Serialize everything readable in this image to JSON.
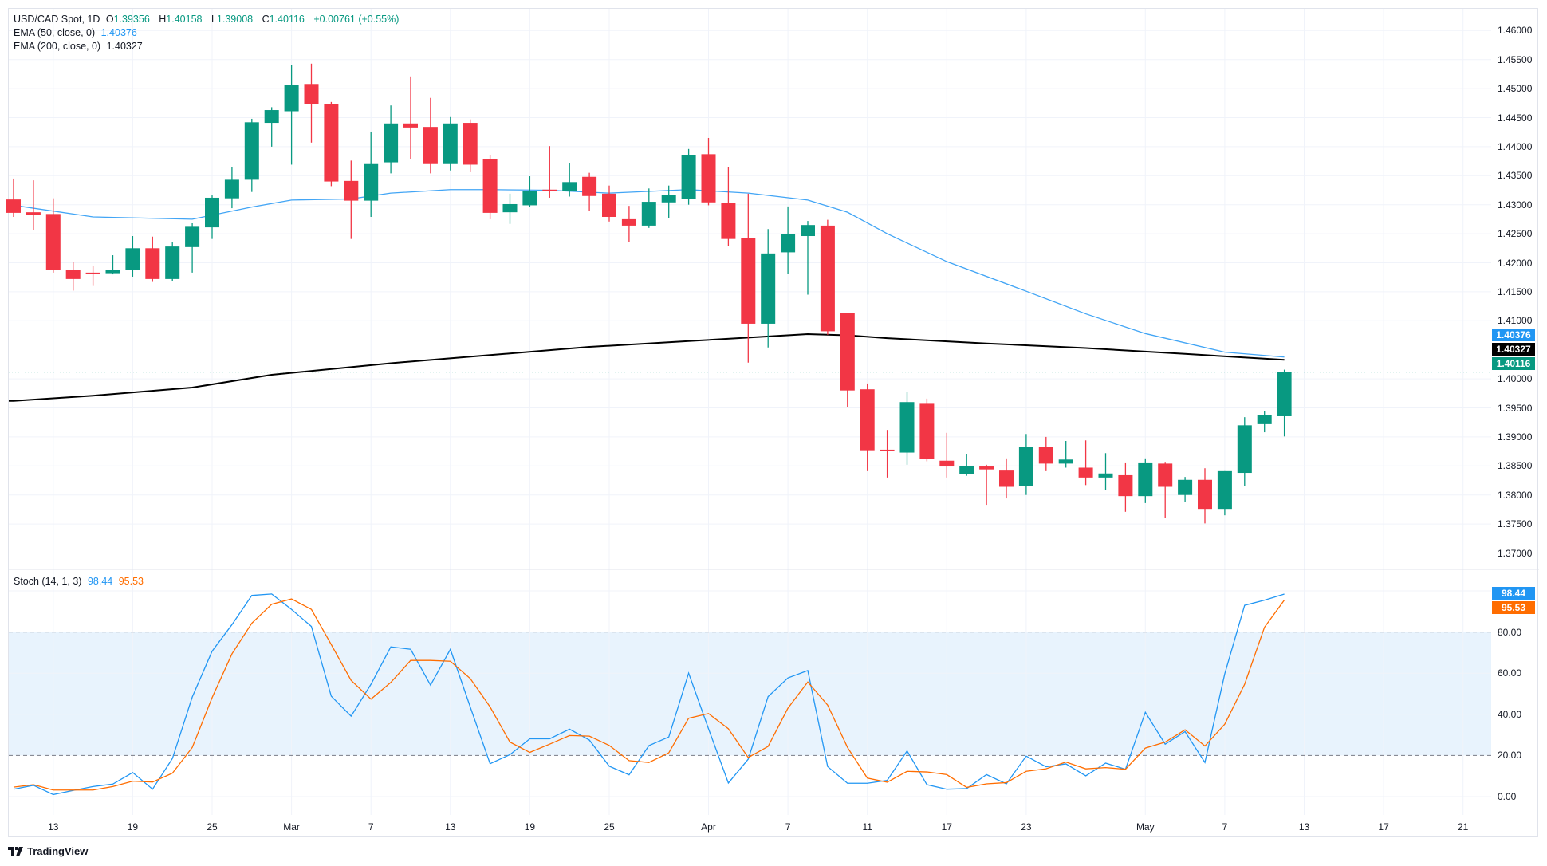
{
  "header": {
    "symbol": "USD/CAD Spot, 1D",
    "o_label": "O",
    "o": "1.39356",
    "h_label": "H",
    "h": "1.40158",
    "l_label": "L",
    "l": "1.39008",
    "c_label": "C",
    "c": "1.40116",
    "change": "+0.00761 (+0.55%)",
    "ema50_label": "EMA (50, close, 0)",
    "ema50_value": "1.40376",
    "ema200_label": "EMA (200, close, 0)",
    "ema200_value": "1.40327"
  },
  "stoch_legend": {
    "label": "Stoch (14, 1, 3)",
    "k_value": "98.44",
    "d_value": "95.53"
  },
  "price_tags": {
    "ema50": "1.40376",
    "ema200": "1.40327",
    "last": "1.40116"
  },
  "stoch_tags": {
    "k": "98.44",
    "d": "95.53"
  },
  "logo_text": "TradingView",
  "colors": {
    "up": "#089981",
    "down": "#f23645",
    "ema50": "#42a5f5",
    "ema200": "#000000",
    "stoch_k": "#2196f3",
    "stoch_d": "#ff6d00",
    "band": "#e8f3fd"
  },
  "chart_data": [
    {
      "type": "candlestick",
      "title": "USD/CAD Spot, 1D",
      "ylim": [
        1.367,
        1.4625
      ],
      "y_ticks": [
        "1.46000",
        "1.45500",
        "1.45000",
        "1.44500",
        "1.44000",
        "1.43500",
        "1.43000",
        "1.42500",
        "1.42000",
        "1.41500",
        "1.41000",
        "1.40000",
        "1.39500",
        "1.39000",
        "1.38500",
        "1.38000",
        "1.37500",
        "1.37000"
      ],
      "grid": true,
      "candles": [
        [
          "Feb 11",
          1.4309,
          1.4345,
          1.4279,
          1.4286
        ],
        [
          "Feb 12",
          1.4287,
          1.4342,
          1.4256,
          1.4283
        ],
        [
          "Feb 13",
          1.4284,
          1.4311,
          1.4183,
          1.4187
        ],
        [
          "Feb 14",
          1.4188,
          1.4202,
          1.4152,
          1.4172
        ],
        [
          "Feb 17",
          1.4183,
          1.4194,
          1.416,
          1.4182
        ],
        [
          "Feb 18",
          1.4182,
          1.4213,
          1.418,
          1.4188
        ],
        [
          "Feb 19",
          1.4187,
          1.4246,
          1.4176,
          1.4225
        ],
        [
          "Feb 20",
          1.4225,
          1.4245,
          1.4167,
          1.4172
        ],
        [
          "Feb 21",
          1.4172,
          1.4235,
          1.4169,
          1.4228
        ],
        [
          "Feb 24",
          1.4227,
          1.4268,
          1.4183,
          1.4262
        ],
        [
          "Feb 25",
          1.4261,
          1.4316,
          1.4241,
          1.4312
        ],
        [
          "Feb 26",
          1.4311,
          1.4365,
          1.4294,
          1.4343
        ],
        [
          "Feb 27",
          1.4343,
          1.4448,
          1.4322,
          1.4442
        ],
        [
          "Feb 28",
          1.4441,
          1.4468,
          1.44,
          1.4463
        ],
        [
          "Mar 3",
          1.4461,
          1.4541,
          1.4369,
          1.4507
        ],
        [
          "Mar 4",
          1.4508,
          1.4543,
          1.4407,
          1.4473
        ],
        [
          "Mar 5",
          1.4473,
          1.4477,
          1.4332,
          1.434
        ],
        [
          "Mar 6",
          1.4341,
          1.4376,
          1.4241,
          1.4307
        ],
        [
          "Mar 7",
          1.4307,
          1.4426,
          1.4279,
          1.437
        ],
        [
          "Mar 10",
          1.4373,
          1.4471,
          1.4354,
          1.444
        ],
        [
          "Mar 11",
          1.444,
          1.4521,
          1.4378,
          1.4433
        ],
        [
          "Mar 12",
          1.4434,
          1.4484,
          1.4354,
          1.437
        ],
        [
          "Mar 13",
          1.437,
          1.4451,
          1.4359,
          1.444
        ],
        [
          "Mar 14",
          1.4441,
          1.4447,
          1.4356,
          1.4369
        ],
        [
          "Mar 17",
          1.4379,
          1.4385,
          1.4275,
          1.4286
        ],
        [
          "Mar 18",
          1.4287,
          1.4319,
          1.4267,
          1.4301
        ],
        [
          "Mar 19",
          1.4299,
          1.4349,
          1.4296,
          1.4324
        ],
        [
          "Mar 20",
          1.4326,
          1.4401,
          1.4312,
          1.4325
        ],
        [
          "Mar 21",
          1.4323,
          1.4372,
          1.4314,
          1.4339
        ],
        [
          "Mar 24",
          1.4348,
          1.4355,
          1.429,
          1.4315
        ],
        [
          "Mar 25",
          1.4319,
          1.4333,
          1.4271,
          1.4279
        ],
        [
          "Mar 26",
          1.4275,
          1.4298,
          1.4236,
          1.4264
        ],
        [
          "Mar 27",
          1.4264,
          1.4328,
          1.426,
          1.4305
        ],
        [
          "Mar 28",
          1.4304,
          1.4333,
          1.4277,
          1.4317
        ],
        [
          "Mar 31",
          1.431,
          1.4396,
          1.43,
          1.4385
        ],
        [
          "Apr 1",
          1.4387,
          1.4415,
          1.4299,
          1.4304
        ],
        [
          "Apr 2",
          1.4303,
          1.4365,
          1.4229,
          1.4241
        ],
        [
          "Apr 3",
          1.4242,
          1.4319,
          1.4028,
          1.4095
        ],
        [
          "Apr 4",
          1.4095,
          1.4258,
          1.4054,
          1.4216
        ],
        [
          "Apr 7",
          1.4218,
          1.4297,
          1.4181,
          1.4249
        ],
        [
          "Apr 8",
          1.4246,
          1.4272,
          1.4145,
          1.4265
        ],
        [
          "Apr 9",
          1.4264,
          1.4274,
          1.4076,
          1.4082
        ],
        [
          "Apr 10",
          1.4114,
          1.4114,
          1.3952,
          1.398
        ],
        [
          "Apr 11",
          1.3982,
          1.3992,
          1.3841,
          1.3877
        ],
        [
          "Apr 14",
          1.3878,
          1.3912,
          1.383,
          1.3877
        ],
        [
          "Apr 15",
          1.3873,
          1.3978,
          1.3852,
          1.396
        ],
        [
          "Apr 16",
          1.3957,
          1.3966,
          1.3858,
          1.3862
        ],
        [
          "Apr 17",
          1.3859,
          1.3907,
          1.383,
          1.3849
        ],
        [
          "Apr 18",
          1.3836,
          1.3871,
          1.3833,
          1.385
        ],
        [
          "Apr 21",
          1.3849,
          1.3852,
          1.3783,
          1.3844
        ],
        [
          "Apr 22",
          1.3842,
          1.3863,
          1.3794,
          1.3814
        ],
        [
          "Apr 23",
          1.3815,
          1.3905,
          1.38,
          1.3883
        ],
        [
          "Apr 24",
          1.3882,
          1.39,
          1.3841,
          1.3854
        ],
        [
          "Apr 25",
          1.3854,
          1.3893,
          1.3847,
          1.3861
        ],
        [
          "Apr 28",
          1.3847,
          1.3894,
          1.3817,
          1.383
        ],
        [
          "Apr 29",
          1.383,
          1.3872,
          1.3809,
          1.3837
        ],
        [
          "Apr 30",
          1.3834,
          1.3856,
          1.3771,
          1.3798
        ],
        [
          "May 1",
          1.3798,
          1.3863,
          1.3786,
          1.3856
        ],
        [
          "May 2",
          1.3854,
          1.3857,
          1.3761,
          1.3814
        ],
        [
          "May 5",
          1.38,
          1.3831,
          1.3788,
          1.3826
        ],
        [
          "May 6",
          1.3826,
          1.3846,
          1.3751,
          1.3776
        ],
        [
          "May 7",
          1.3776,
          1.3841,
          1.3765,
          1.3841
        ],
        [
          "May 8",
          1.3838,
          1.3934,
          1.3815,
          1.392
        ],
        [
          "May 9",
          1.3922,
          1.3945,
          1.3908,
          1.3937
        ],
        [
          "May 12",
          1.39356,
          1.40158,
          1.39008,
          1.40116
        ]
      ],
      "last_price": 1.40116,
      "overlays": [
        {
          "name": "EMA (50, close, 0)",
          "points": [
            [
              0,
              1.4299
            ],
            [
              4,
              1.4279
            ],
            [
              9,
              1.4275
            ],
            [
              12,
              1.4296
            ],
            [
              14,
              1.4308
            ],
            [
              17,
              1.431
            ],
            [
              19,
              1.432
            ],
            [
              22,
              1.4326
            ],
            [
              24,
              1.4326
            ],
            [
              27,
              1.4325
            ],
            [
              30,
              1.432
            ],
            [
              34,
              1.4326
            ],
            [
              37,
              1.432
            ],
            [
              40,
              1.4308
            ],
            [
              42,
              1.4287
            ],
            [
              44,
              1.425
            ],
            [
              47,
              1.4202
            ],
            [
              51,
              1.4151
            ],
            [
              54,
              1.4112
            ],
            [
              57,
              1.4078
            ],
            [
              61,
              1.4046
            ],
            [
              64,
              1.40376
            ]
          ]
        },
        {
          "name": "EMA (200, close, 0)",
          "points": [
            [
              0,
              1.3962
            ],
            [
              4,
              1.3971
            ],
            [
              9,
              1.3985
            ],
            [
              13,
              1.4007
            ],
            [
              19,
              1.4027
            ],
            [
              24,
              1.4041
            ],
            [
              29,
              1.4055
            ],
            [
              34,
              1.4065
            ],
            [
              37,
              1.4071
            ],
            [
              40,
              1.4077
            ],
            [
              42,
              1.4075
            ],
            [
              44,
              1.407
            ],
            [
              49,
              1.4061
            ],
            [
              54,
              1.4053
            ],
            [
              59,
              1.4043
            ],
            [
              64,
              1.40327
            ]
          ]
        }
      ],
      "x_ticks": [
        [
          "13",
          2
        ],
        [
          "19",
          6
        ],
        [
          "25",
          10
        ],
        [
          "Mar",
          14
        ],
        [
          "7",
          18
        ],
        [
          "13",
          22
        ],
        [
          "19",
          26
        ],
        [
          "25",
          30
        ],
        [
          "Apr",
          35
        ],
        [
          "7",
          39
        ],
        [
          "11",
          43
        ],
        [
          "17",
          47
        ],
        [
          "23",
          51
        ],
        [
          "May",
          57
        ],
        [
          "7",
          61
        ],
        [
          "13",
          65
        ],
        [
          "17",
          69
        ],
        [
          "21",
          73
        ]
      ]
    },
    {
      "type": "line",
      "title": "Stoch (14, 1, 3)",
      "ylim": [
        -8,
        104
      ],
      "y_ticks": [
        "80.00",
        "60.00",
        "40.00",
        "20.00",
        "0.00"
      ],
      "bands": [
        20,
        80
      ],
      "series": [
        {
          "name": "%K",
          "values": [
            3.6,
            5.5,
            1.0,
            3.0,
            4.9,
            6.1,
            11.7,
            3.6,
            18.5,
            48.4,
            70.7,
            83.6,
            97.8,
            98.5,
            91.0,
            82.7,
            48.8,
            39.1,
            54.6,
            72.8,
            71.6,
            54.2,
            71.6,
            43.6,
            16.0,
            20.4,
            28.1,
            28.1,
            32.8,
            27.5,
            14.8,
            10.6,
            24.8,
            29.0,
            60.0,
            33.0,
            6.6,
            18.2,
            48.6,
            57.7,
            61.3,
            14.6,
            6.5,
            6.5,
            7.9,
            22.2,
            5.8,
            3.6,
            3.9,
            10.7,
            6.2,
            19.7,
            14.5,
            15.9,
            10.1,
            16.3,
            13.3,
            41.0,
            25.5,
            31.6,
            16.6,
            59.7,
            93.0,
            95.5,
            98.44
          ]
        },
        {
          "name": "%D",
          "values": [
            4.6,
            5.8,
            3.2,
            3.2,
            3.2,
            4.9,
            7.5,
            7.1,
            11.4,
            23.9,
            48.1,
            69.4,
            84.3,
            93.5,
            96.1,
            91.0,
            73.9,
            56.5,
            47.4,
            55.5,
            66.2,
            66.2,
            65.8,
            57.4,
            43.6,
            26.5,
            21.5,
            25.5,
            29.7,
            29.4,
            24.9,
            17.5,
            16.6,
            21.3,
            38.1,
            40.4,
            33.0,
            19.0,
            24.4,
            43.0,
            55.7,
            44.5,
            23.9,
            9.0,
            7.0,
            12.3,
            12.0,
            10.7,
            4.5,
            6.2,
            6.8,
            12.3,
            13.5,
            16.8,
            13.5,
            14.1,
            13.3,
            23.6,
            26.5,
            32.5,
            24.6,
            35.2,
            54.6,
            82.3,
            95.53
          ]
        }
      ]
    }
  ]
}
